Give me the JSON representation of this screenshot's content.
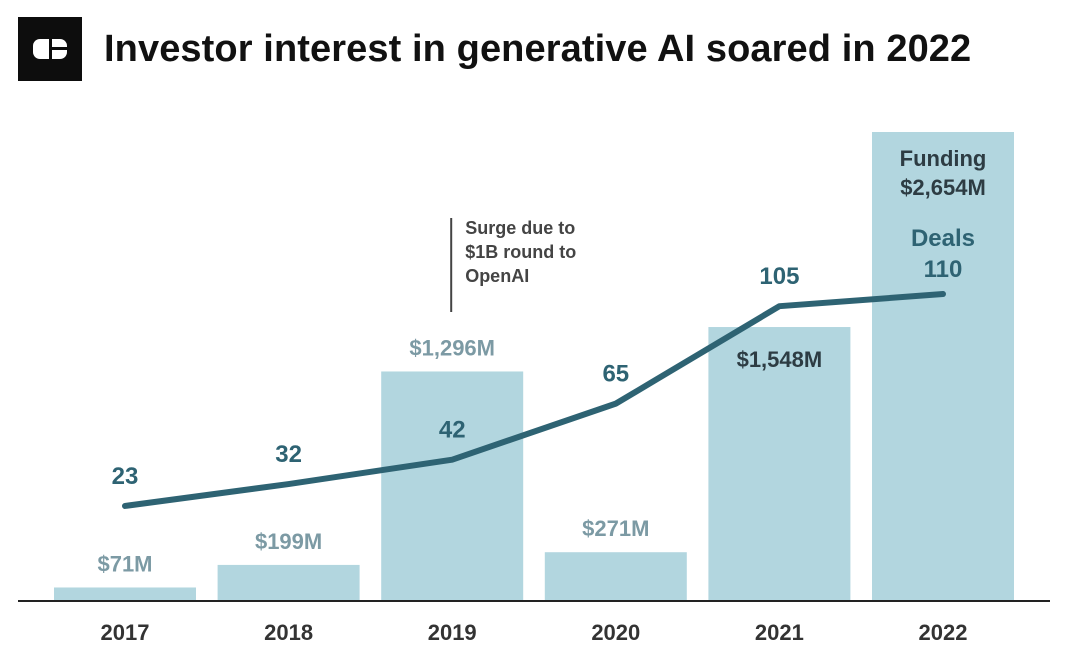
{
  "header": {
    "title": "Investor interest in generative AI soared in 2022",
    "logo_icon": "publisher-logo-icon"
  },
  "colors": {
    "bar": "#b2d6df",
    "line": "#2e6373",
    "funding_label": "#7c9aa4",
    "funding_label_inside": "#2d3c43",
    "axis": "#222222",
    "tick_label": "#333333"
  },
  "chart_data": {
    "type": "bar",
    "categories": [
      "2017",
      "2018",
      "2019",
      "2020",
      "2021",
      "2022"
    ],
    "series": [
      {
        "name": "Funding",
        "type": "bar",
        "values": [
          71,
          199,
          1296,
          271,
          1548,
          2654
        ],
        "labels": [
          "$71M",
          "$199M",
          "$1,296M",
          "$271M",
          "$1,548M",
          "$2,654M"
        ]
      },
      {
        "name": "Deals",
        "type": "line",
        "values": [
          23,
          32,
          42,
          65,
          105,
          110
        ],
        "labels": [
          "23",
          "32",
          "42",
          "65",
          "105",
          "110"
        ]
      }
    ],
    "legend": {
      "funding_title": "Funding",
      "deals_title": "Deals"
    },
    "annotation": {
      "lines": [
        "Surge due to",
        "$1B round to",
        "OpenAI"
      ],
      "category": "2019"
    },
    "funding_ylim": [
      0,
      2654
    ],
    "deals_ylim": [
      0,
      110
    ],
    "grid": false
  }
}
